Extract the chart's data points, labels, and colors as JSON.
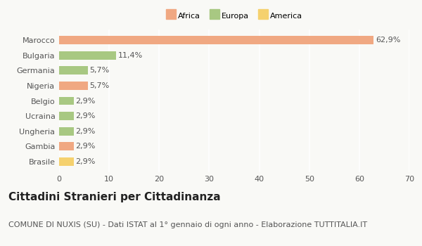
{
  "categories": [
    "Brasile",
    "Gambia",
    "Ungheria",
    "Ucraina",
    "Belgio",
    "Nigeria",
    "Germania",
    "Bulgaria",
    "Marocco"
  ],
  "values": [
    2.9,
    2.9,
    2.9,
    2.9,
    2.9,
    5.7,
    5.7,
    11.4,
    62.9
  ],
  "labels": [
    "2,9%",
    "2,9%",
    "2,9%",
    "2,9%",
    "2,9%",
    "5,7%",
    "5,7%",
    "11,4%",
    "62,9%"
  ],
  "colors": [
    "#f5d16e",
    "#f0a882",
    "#a8c882",
    "#a8c882",
    "#a8c882",
    "#f0a882",
    "#a8c882",
    "#a8c882",
    "#f0a882"
  ],
  "legend": [
    {
      "label": "Africa",
      "color": "#f0a882"
    },
    {
      "label": "Europa",
      "color": "#a8c882"
    },
    {
      "label": "America",
      "color": "#f5d16e"
    }
  ],
  "xlim": [
    0,
    70
  ],
  "xticks": [
    0,
    10,
    20,
    30,
    40,
    50,
    60,
    70
  ],
  "title": "Cittadini Stranieri per Cittadinanza",
  "subtitle": "COMUNE DI NUXIS (SU) - Dati ISTAT al 1° gennaio di ogni anno - Elaborazione TUTTITALIA.IT",
  "background_color": "#f9f9f6",
  "grid_color": "#ffffff",
  "bar_height": 0.55,
  "title_fontsize": 11,
  "subtitle_fontsize": 8,
  "label_fontsize": 8,
  "tick_fontsize": 8
}
